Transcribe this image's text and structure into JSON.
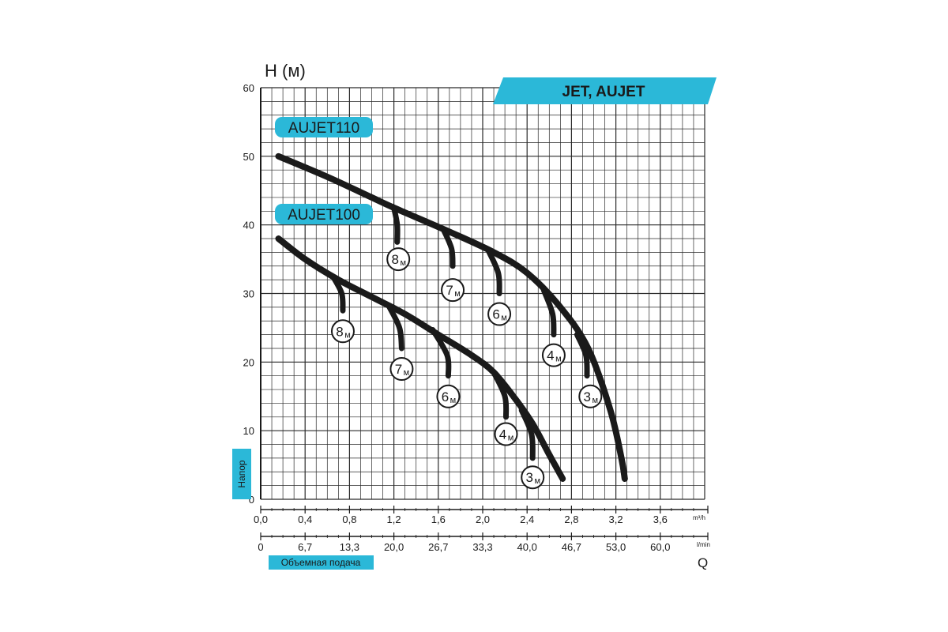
{
  "header": {
    "y_axis_title": "H (м)",
    "series_title": "JET, AUJET",
    "series_title_color": "#2bb8d8",
    "side_label": "Напор",
    "bottom_label": "Объемная подача",
    "flow_unit_m3h": "m³/h",
    "flow_unit_lmin": "l/min",
    "q_label": "Q"
  },
  "chart_data": {
    "type": "line",
    "title": "JET, AUJET",
    "xlabel": "Q",
    "ylabel": "H (м)",
    "xlim": [
      0,
      4.0
    ],
    "ylim": [
      0,
      60
    ],
    "grid": true,
    "x_ticks": [
      "0,0",
      "0,4",
      "0,8",
      "1,2",
      "1,6",
      "2,0",
      "2,4",
      "2,8",
      "3,2",
      "3,6"
    ],
    "x_ticks_values": [
      0,
      0.4,
      0.8,
      1.2,
      1.6,
      2.0,
      2.4,
      2.8,
      3.2,
      3.6
    ],
    "x2_ticks": [
      "0",
      "6,7",
      "13,3",
      "20,0",
      "26,7",
      "33,3",
      "40,0",
      "46,7",
      "53,0",
      "60,0"
    ],
    "y_ticks": [
      0,
      10,
      20,
      30,
      40,
      50,
      60
    ],
    "series": [
      {
        "name": "AUJET110",
        "x": [
          0.16,
          0.6,
          1.0,
          1.2,
          1.7,
          2.1,
          2.4,
          2.7,
          2.95,
          3.15,
          3.25,
          3.28
        ],
        "y": [
          50,
          47,
          44,
          42.5,
          39,
          36,
          33,
          28,
          22,
          13,
          6,
          3
        ],
        "branches": [
          {
            "label": "8м",
            "x": [
              1.2,
              1.23,
              1.23
            ],
            "y": [
              42.5,
              40,
              37.5
            ],
            "label_x": 1.24,
            "label_y": 35
          },
          {
            "label": "7м",
            "x": [
              1.65,
              1.72,
              1.73
            ],
            "y": [
              39.2,
              36.5,
              34
            ],
            "label_x": 1.73,
            "label_y": 30.5
          },
          {
            "label": "6м",
            "x": [
              2.05,
              2.14,
              2.15
            ],
            "y": [
              36.3,
              33,
              30
            ],
            "label_x": 2.15,
            "label_y": 27
          },
          {
            "label": "4м",
            "x": [
              2.55,
              2.63,
              2.64
            ],
            "y": [
              30.5,
              27,
              24
            ],
            "label_x": 2.64,
            "label_y": 21
          },
          {
            "label": "3м",
            "x": [
              2.85,
              2.93,
              2.94
            ],
            "y": [
              24,
              21,
              18
            ],
            "label_x": 2.97,
            "label_y": 15
          }
        ]
      },
      {
        "name": "AUJET100",
        "x": [
          0.16,
          0.4,
          0.7,
          1.0,
          1.3,
          1.6,
          1.9,
          2.1,
          2.3,
          2.45,
          2.6,
          2.72
        ],
        "y": [
          38,
          35,
          32,
          29.5,
          27,
          24,
          21,
          18.5,
          14.5,
          11,
          6.5,
          3
        ],
        "branches": [
          {
            "label": "8м",
            "x": [
              0.65,
              0.73,
              0.74
            ],
            "y": [
              32.5,
              30,
              27.5
            ],
            "label_x": 0.74,
            "label_y": 24.5
          },
          {
            "label": "7м",
            "x": [
              1.15,
              1.25,
              1.27
            ],
            "y": [
              28.3,
              25,
              22
            ],
            "label_x": 1.27,
            "label_y": 19
          },
          {
            "label": "6м",
            "x": [
              1.55,
              1.68,
              1.69
            ],
            "y": [
              24.7,
              21,
              18
            ],
            "label_x": 1.69,
            "label_y": 15
          },
          {
            "label": "4м",
            "x": [
              2.1,
              2.2,
              2.21
            ],
            "y": [
              18.5,
              15,
              12
            ],
            "label_x": 2.21,
            "label_y": 9.5
          },
          {
            "label": "3м",
            "x": [
              2.35,
              2.44,
              2.45
            ],
            "y": [
              13,
              9.5,
              6
            ],
            "label_x": 2.45,
            "label_y": 3.2
          }
        ]
      }
    ],
    "series_label_color": "#2bb8d8",
    "curve_color": "#1a1a1a"
  }
}
